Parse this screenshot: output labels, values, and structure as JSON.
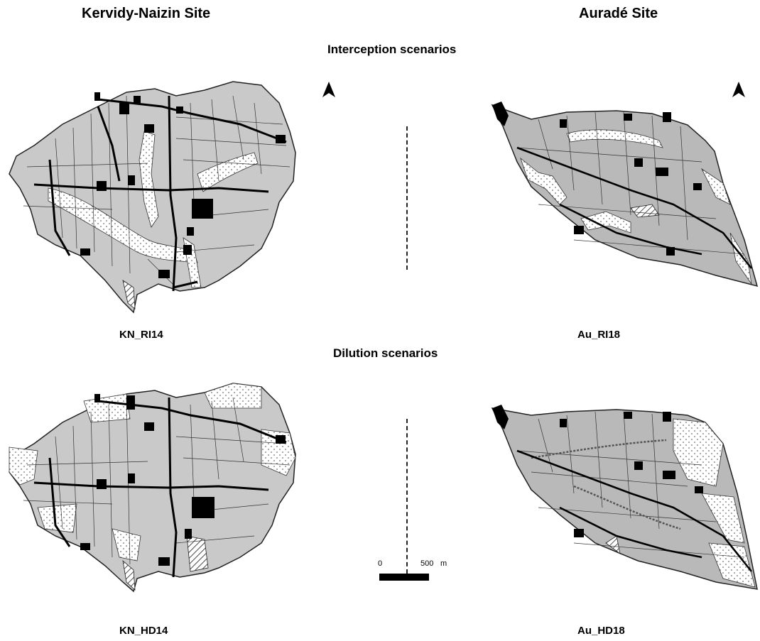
{
  "site_titles": {
    "left": "Kervidy-Naizin Site",
    "right": "Auradé Site"
  },
  "sections": {
    "interception": "Interception scenarios",
    "dilution": "Dilution scenarios"
  },
  "map_labels": {
    "kn_ri": "KN_RI14",
    "au_ri": "Au_RI18",
    "kn_hd": "KN_HD14",
    "au_hd": "Au_HD18"
  },
  "scale": {
    "zero": "0",
    "value": "500",
    "unit": "m"
  },
  "icons": {
    "north": "north-arrow-icon"
  },
  "colors": {
    "field": "#c8c8c8",
    "field_dark": "#a9a9a9",
    "built": "#000000",
    "line": "#222222",
    "buffer": "#ffffff"
  }
}
